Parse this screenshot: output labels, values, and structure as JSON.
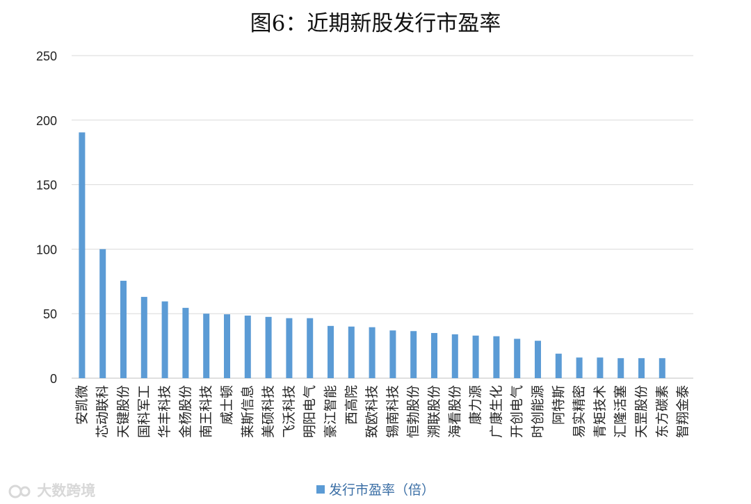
{
  "chart_data": {
    "type": "bar",
    "title": "图6：近期新股发行市盈率",
    "categories": [
      "安凯微",
      "芯动联科",
      "天键股份",
      "国科军工",
      "华丰科技",
      "金杨股份",
      "南王科技",
      "威士顿",
      "莱斯信息",
      "美硕科技",
      "飞沃科技",
      "明阳电气",
      "豪江智能",
      "西高院",
      "致欧科技",
      "锡南科技",
      "恒勃股份",
      "溯联股份",
      "海看股份",
      "康力源",
      "广康生化",
      "开创电气",
      "时创能源",
      "阿特斯",
      "易实精密",
      "青矩技术",
      "汇隆活塞",
      "天罡股份",
      "东方碳素",
      "智翔金泰"
    ],
    "series": [
      {
        "name": "发行市盈率（倍）",
        "values": [
          190.5,
          100,
          75.5,
          63,
          59.5,
          54.5,
          50,
          49.5,
          48.5,
          47.5,
          46.5,
          46.5,
          40.5,
          40,
          39.5,
          37,
          36.5,
          35,
          34,
          33,
          32.5,
          30.5,
          29,
          19,
          16,
          16,
          15.5,
          15.5,
          15.5,
          0
        ]
      }
    ],
    "xlabel": "",
    "ylabel": "",
    "ylim": [
      0,
      250
    ],
    "yticks": [
      "0",
      "50",
      "100",
      "150",
      "200",
      "250"
    ],
    "grid": true,
    "legend_position": "bottom",
    "colors": {
      "bar": "#5b9bd5",
      "grid": "#d9d9d9",
      "axis": "#bfbfbf"
    }
  },
  "watermark": {
    "text": "大数跨境"
  }
}
